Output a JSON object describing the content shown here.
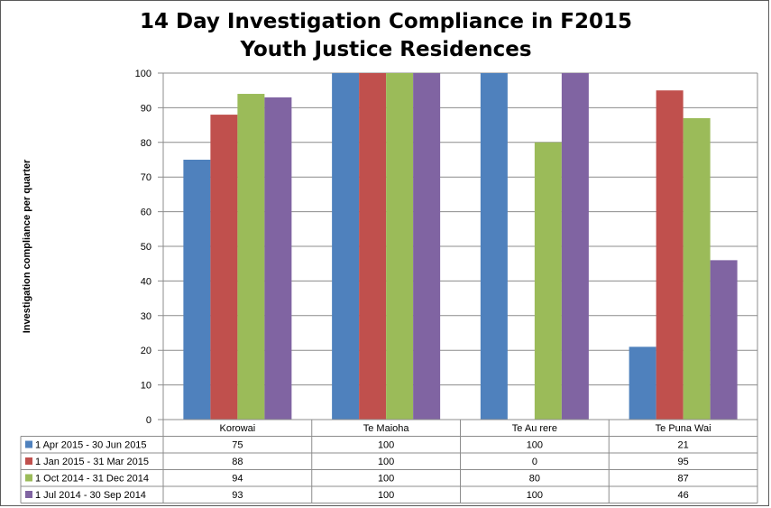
{
  "chart_data": {
    "type": "bar",
    "title_lines": [
      "14 Day Investigation Compliance in F2015",
      "Youth Justice Residences"
    ],
    "ylabel": "Investigation compliance per quarter",
    "xlabel": "",
    "ylim": [
      0,
      100
    ],
    "yticks": [
      0,
      10,
      20,
      30,
      40,
      50,
      60,
      70,
      80,
      90,
      100
    ],
    "grid": true,
    "legend_placement": "data-table-bottom",
    "categories": [
      "Korowai",
      "Te Maioha",
      "Te Au rere",
      "Te Puna Wai"
    ],
    "series": [
      {
        "name": "1 Apr 2015 - 30 Jun  2015",
        "color": "#4f81bd",
        "values": [
          75,
          100,
          100,
          21
        ]
      },
      {
        "name": "1 Jan 2015 - 31 Mar 2015",
        "color": "#c0504d",
        "values": [
          88,
          100,
          0,
          95
        ]
      },
      {
        "name": "1 Oct 2014 - 31 Dec 2014",
        "color": "#9bbb59",
        "values": [
          94,
          100,
          80,
          87
        ]
      },
      {
        "name": "1 Jul 2014 - 30 Sep 2014",
        "color": "#8064a2",
        "values": [
          93,
          100,
          100,
          46
        ]
      }
    ]
  }
}
